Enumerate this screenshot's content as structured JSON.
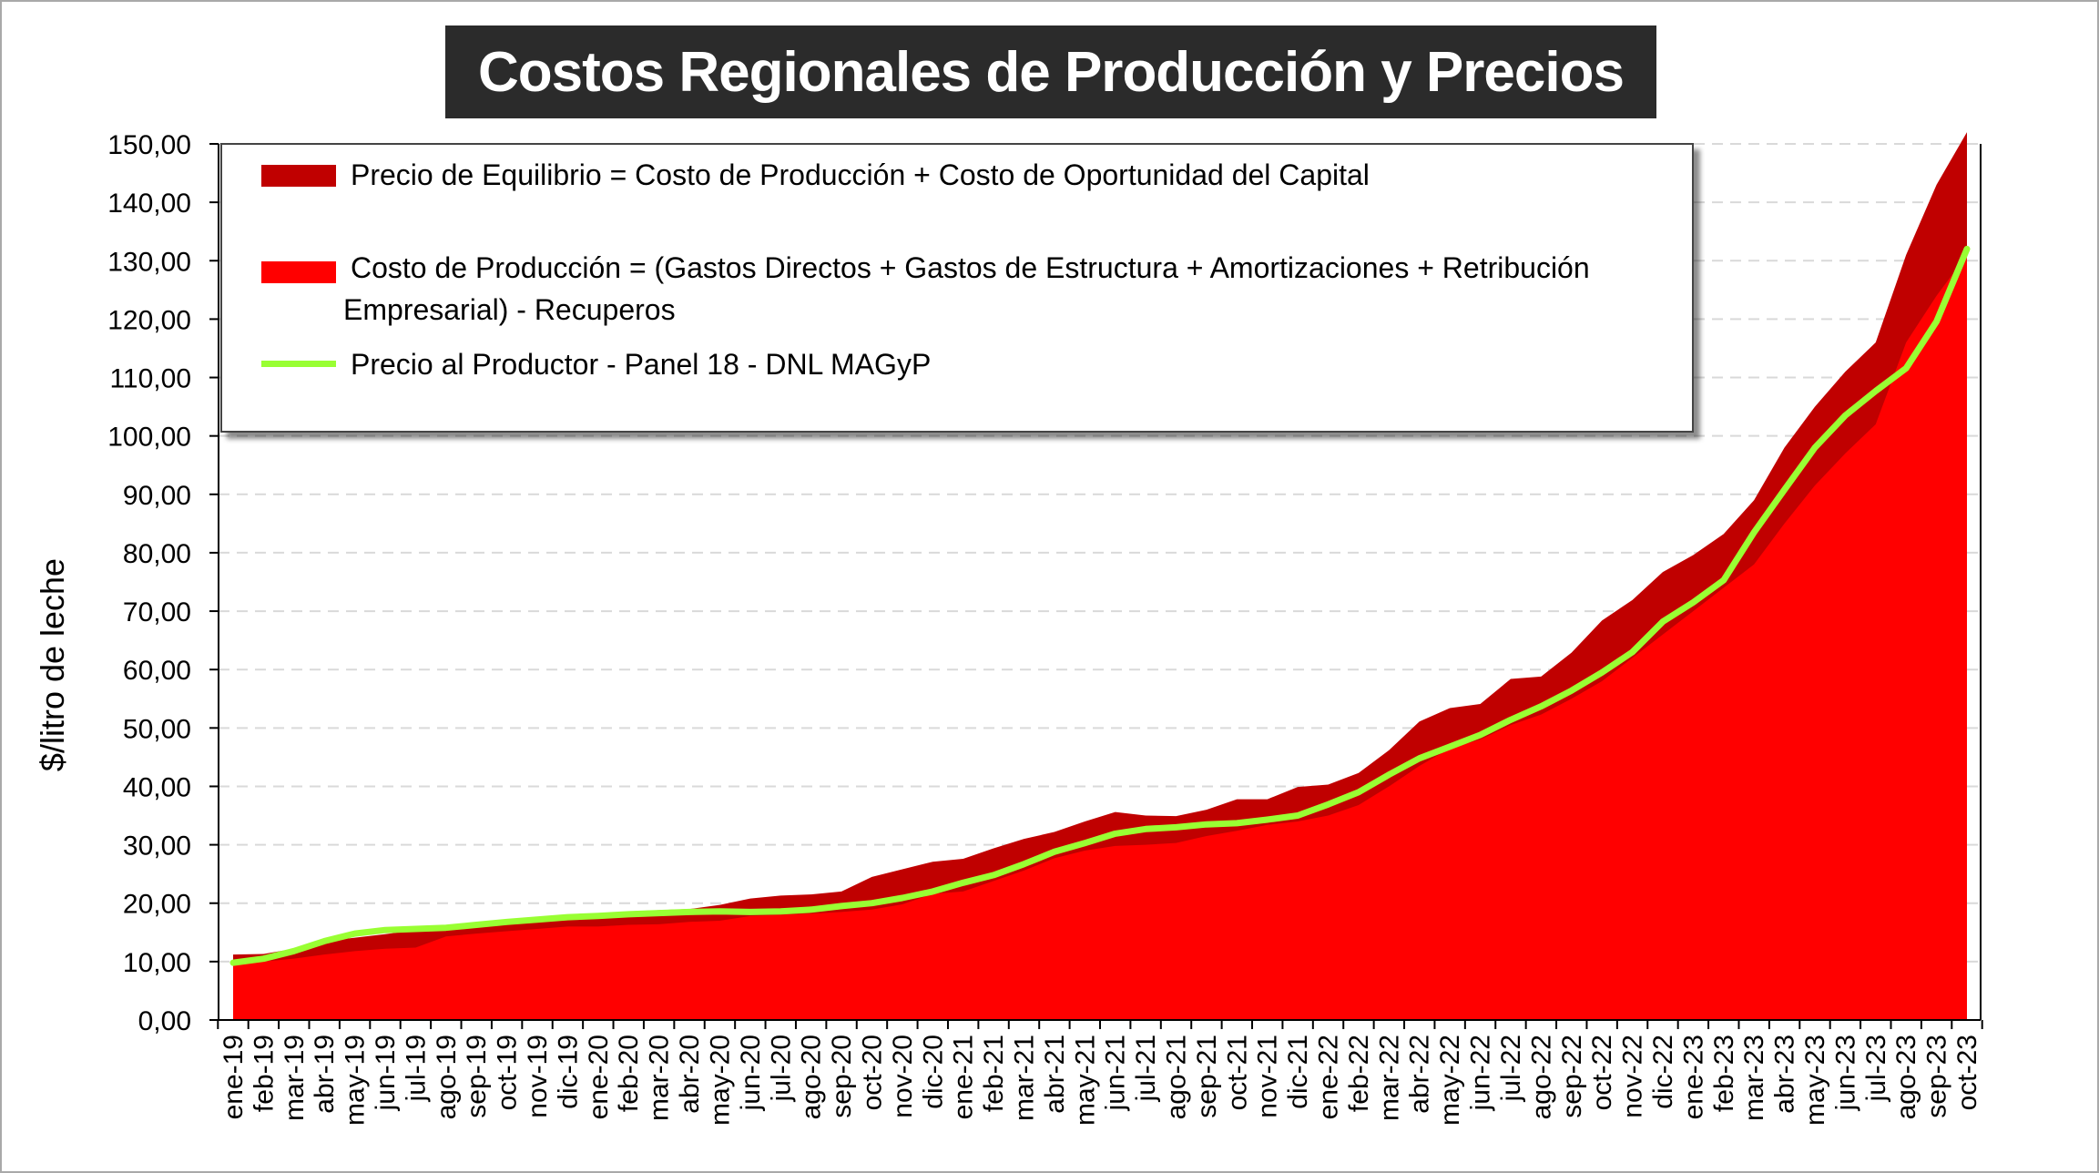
{
  "chart_data": {
    "type": "area",
    "title": "Costos Regionales de Producción y Precios",
    "ylabel": "$/litro de leche",
    "xlabel": "",
    "ylim": [
      0,
      150
    ],
    "yticks": [
      "0,00",
      "10,00",
      "20,00",
      "30,00",
      "40,00",
      "50,00",
      "60,00",
      "70,00",
      "80,00",
      "90,00",
      "100,00",
      "110,00",
      "120,00",
      "130,00",
      "140,00",
      "150,00"
    ],
    "grid": true,
    "legend_position": "top-left",
    "categories": [
      "ene-19",
      "feb-19",
      "mar-19",
      "abr-19",
      "may-19",
      "jun-19",
      "jul-19",
      "ago-19",
      "sep-19",
      "oct-19",
      "nov-19",
      "dic-19",
      "ene-20",
      "feb-20",
      "mar-20",
      "abr-20",
      "may-20",
      "jun-20",
      "jul-20",
      "ago-20",
      "sep-20",
      "oct-20",
      "nov-20",
      "dic-20",
      "ene-21",
      "feb-21",
      "mar-21",
      "abr-21",
      "may-21",
      "jun-21",
      "jul-21",
      "ago-21",
      "sep-21",
      "oct-21",
      "nov-21",
      "dic-21",
      "ene-22",
      "feb-22",
      "mar-22",
      "abr-22",
      "may-22",
      "jun-22",
      "jul-22",
      "ago-22",
      "sep-22",
      "oct-22",
      "nov-22",
      "dic-22",
      "ene-23",
      "feb-23",
      "mar-23",
      "abr-23",
      "may-23",
      "jun-23",
      "jul-23",
      "ago-23",
      "sep-23",
      "oct-23"
    ],
    "series": [
      {
        "name": "Precio de Equilibrio = Costo de Producción + Costo de Oportunidad del Capital",
        "color": "#c00000",
        "values": [
          11.2,
          11.3,
          12.2,
          13.5,
          14.1,
          14.7,
          15.4,
          15.7,
          16.5,
          17.0,
          17.6,
          18.0,
          18.2,
          18.6,
          18.8,
          19.0,
          19.7,
          20.8,
          21.3,
          21.5,
          22.0,
          24.5,
          25.8,
          27.1,
          27.6,
          29.4,
          31.0,
          32.2,
          34.0,
          35.6,
          35.0,
          34.9,
          36.0,
          37.8,
          37.8,
          39.9,
          40.3,
          42.3,
          46.2,
          51.1,
          53.4,
          54.1,
          58.4,
          58.8,
          62.9,
          68.4,
          71.9,
          76.7,
          79.6,
          83.2,
          89.0,
          98.0,
          105.0,
          111.0,
          116.0,
          131.0,
          143.0,
          152.0
        ]
      },
      {
        "name": "Costo de Producción = (Gastos Directos + Gastos de Estructura + Amortizaciones + Retribución Empresarial) - Recuperos",
        "color": "#ff0000",
        "values": [
          9.8,
          10.0,
          10.5,
          11.2,
          11.8,
          12.2,
          12.4,
          14.3,
          14.8,
          15.2,
          15.6,
          16.0,
          16.0,
          16.3,
          16.4,
          16.8,
          17.0,
          17.8,
          18.0,
          18.2,
          18.5,
          18.9,
          19.8,
          21.6,
          22.0,
          23.8,
          25.6,
          27.7,
          29.0,
          29.8,
          30.0,
          30.3,
          31.5,
          32.4,
          33.4,
          34.0,
          35.0,
          36.8,
          40.0,
          43.5,
          46.5,
          48.0,
          50.5,
          52.3,
          55.0,
          58.0,
          62.0,
          66.0,
          70.0,
          74.0,
          78.0,
          85.0,
          91.5,
          97.0,
          102.0,
          116.0,
          124.0,
          131.0
        ]
      },
      {
        "name": "Precio al Productor - Panel 18 - DNL MAGyP",
        "color": "#99ff33",
        "values": [
          9.8,
          10.5,
          11.8,
          13.5,
          14.8,
          15.4,
          15.6,
          15.8,
          16.3,
          16.8,
          17.2,
          17.6,
          17.8,
          18.1,
          18.3,
          18.5,
          18.6,
          18.5,
          18.6,
          18.9,
          19.5,
          20.0,
          20.9,
          22.0,
          23.5,
          24.8,
          26.7,
          28.8,
          30.3,
          31.9,
          32.7,
          33.0,
          33.5,
          33.7,
          34.3,
          35.0,
          36.9,
          39.0,
          42.0,
          44.8,
          46.8,
          48.8,
          51.4,
          53.7,
          56.4,
          59.5,
          63.0,
          68.2,
          71.5,
          75.3,
          83.5,
          90.8,
          98.0,
          103.5,
          107.7,
          111.6,
          119.6,
          132.0
        ]
      }
    ]
  }
}
